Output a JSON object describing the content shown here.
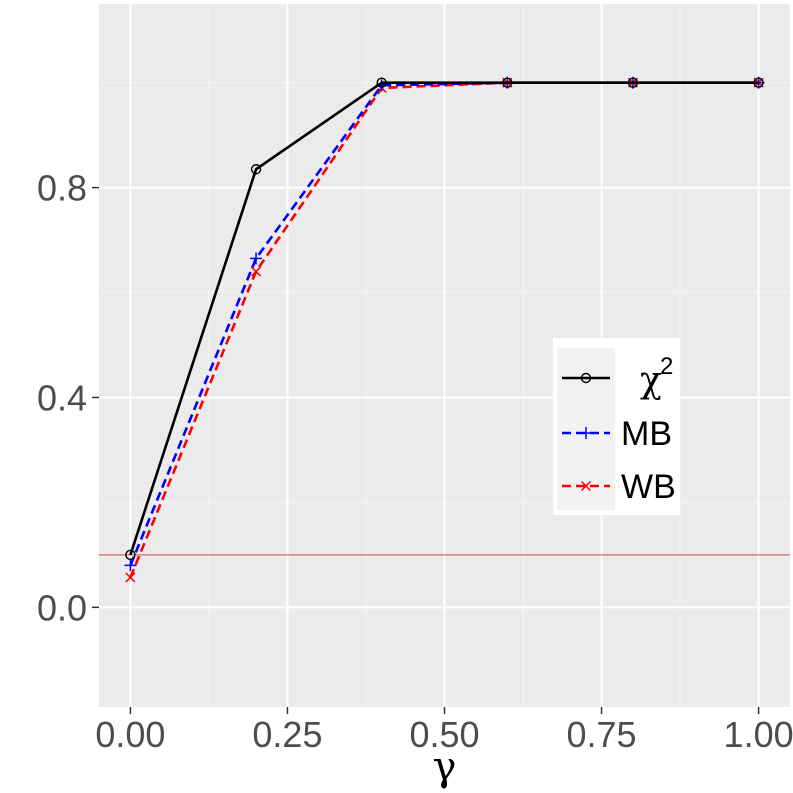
{
  "chart_data": {
    "type": "line",
    "xlabel": "γ",
    "ylabel": "",
    "x": [
      0.0,
      0.2,
      0.4,
      0.6,
      0.8,
      1.0
    ],
    "xlim": [
      -0.05,
      1.05
    ],
    "ylim": [
      -0.19,
      1.15
    ],
    "xticks": [
      0.0,
      0.25,
      0.5,
      0.75,
      1.0
    ],
    "xtick_labels": [
      "0.00",
      "0.25",
      "0.50",
      "0.75",
      "1.00"
    ],
    "yticks": [
      0.0,
      0.4,
      0.8
    ],
    "ytick_labels": [
      "0.0",
      "0.4",
      "0.8"
    ],
    "grid": true,
    "panel_background": "#ebebeb",
    "reference_line": {
      "y": 0.1,
      "color": "#e06666"
    },
    "legend_position": "center-right",
    "series": [
      {
        "name": "χ",
        "superscript": "2",
        "color": "#000000",
        "dash": "solid",
        "marker": "circle",
        "values": [
          0.1,
          0.835,
          1.0,
          1.0,
          1.0,
          1.0
        ]
      },
      {
        "name": "MB",
        "color": "#0000ff",
        "dash": "dashed",
        "marker": "plus",
        "values": [
          0.08,
          0.665,
          0.995,
          1.0,
          1.0,
          1.0
        ]
      },
      {
        "name": "WB",
        "color": "#ff0000",
        "dash": "dashed",
        "marker": "cross",
        "values": [
          0.057,
          0.64,
          0.99,
          1.0,
          1.0,
          1.0
        ]
      }
    ]
  }
}
